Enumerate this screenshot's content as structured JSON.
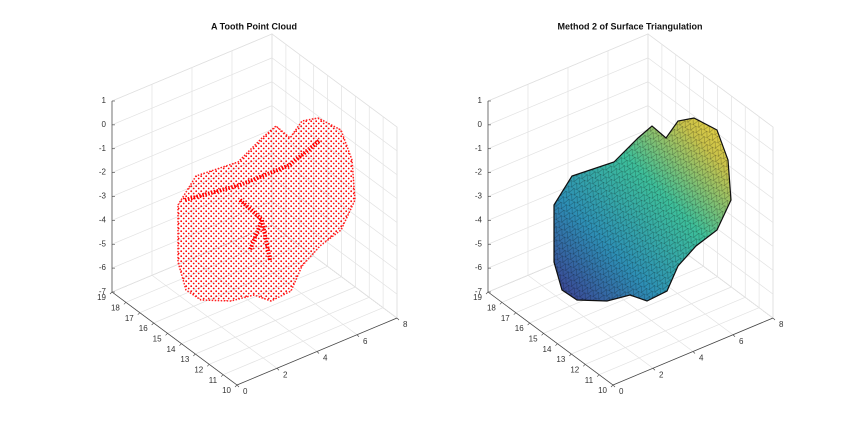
{
  "chart_data": [
    {
      "type": "scatter3d",
      "title": "A Tooth Point Cloud",
      "color": "#ff0000",
      "xlim": [
        0,
        8
      ],
      "xticks": [
        0,
        2,
        4,
        6,
        8
      ],
      "ylim": [
        10,
        19
      ],
      "yticks": [
        10,
        11,
        12,
        13,
        14,
        15,
        16,
        17,
        18,
        19
      ],
      "zlim": [
        -7,
        1
      ],
      "zticks": [
        -7,
        -6,
        -5,
        -4,
        -3,
        -2,
        -1,
        0,
        1
      ],
      "grid": true
    },
    {
      "type": "surface3d",
      "title": "Method 2 of Surface Triangulation",
      "xlim": [
        0,
        8
      ],
      "xticks": [
        0,
        2,
        4,
        6,
        8
      ],
      "ylim": [
        10,
        19
      ],
      "yticks": [
        10,
        11,
        12,
        13,
        14,
        15,
        16,
        17,
        18,
        19
      ],
      "zlim": [
        -7,
        1
      ],
      "zticks": [
        -7,
        -6,
        -5,
        -4,
        -3,
        -2,
        -1,
        0,
        1
      ],
      "grid": true
    }
  ]
}
